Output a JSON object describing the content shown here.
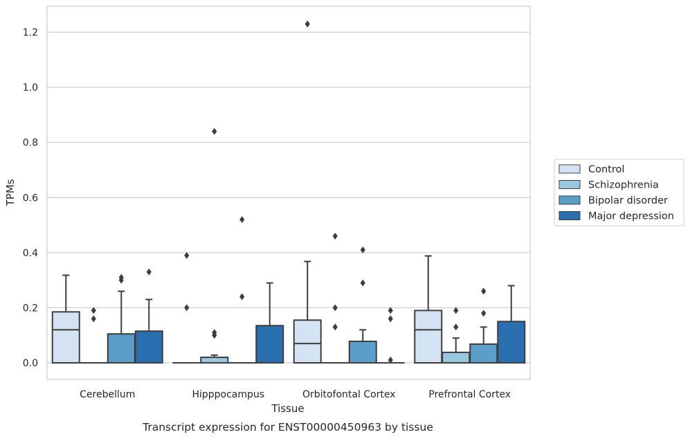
{
  "chart_data": {
    "type": "box",
    "xlabel": "Tissue",
    "ylabel": "TPMs",
    "caption": "Transcript expression for ENST00000450963 by tissue",
    "categories": [
      "Cerebellum",
      "Hipppocampus",
      "Orbitofontal Cortex",
      "Prefrontal Cortex"
    ],
    "ylim": [
      -0.06,
      1.29
    ],
    "yticks": [
      0.0,
      0.2,
      0.4,
      0.6,
      0.8,
      1.0,
      1.2
    ],
    "ytick_labels": [
      "0.0",
      "0.2",
      "0.4",
      "0.6",
      "0.8",
      "1.0",
      "1.2"
    ],
    "grid": true,
    "legend_position": "right",
    "series": [
      {
        "name": "Control",
        "color": "#d3e3f3",
        "boxes": [
          {
            "q1": 0,
            "median": 0.12,
            "q3": 0.185,
            "whisker_low": 0,
            "whisker_high": 0.318,
            "outliers": []
          },
          {
            "q1": 0,
            "median": 0,
            "q3": 0,
            "whisker_low": 0,
            "whisker_high": 0,
            "outliers": [
              0.39,
              0.2
            ]
          },
          {
            "q1": 0,
            "median": 0.07,
            "q3": 0.155,
            "whisker_low": 0,
            "whisker_high": 0.368,
            "outliers": [
              1.23
            ]
          },
          {
            "q1": 0,
            "median": 0.12,
            "q3": 0.19,
            "whisker_low": 0,
            "whisker_high": 0.388,
            "outliers": []
          }
        ]
      },
      {
        "name": "Schizophrenia",
        "color": "#9ac8e0",
        "boxes": [
          {
            "q1": 0,
            "median": 0,
            "q3": 0,
            "whisker_low": 0,
            "whisker_high": 0,
            "outliers": [
              0.19,
              0.16
            ]
          },
          {
            "q1": 0,
            "median": 0,
            "q3": 0.02,
            "whisker_low": 0,
            "whisker_high": 0.028,
            "outliers": [
              0.84,
              0.11,
              0.1
            ]
          },
          {
            "q1": 0,
            "median": 0,
            "q3": 0,
            "whisker_low": 0,
            "whisker_high": 0,
            "outliers": [
              0.46,
              0.2,
              0.13
            ]
          },
          {
            "q1": 0,
            "median": 0,
            "q3": 0.038,
            "whisker_low": 0,
            "whisker_high": 0.09,
            "outliers": [
              0.19,
              0.13
            ]
          }
        ]
      },
      {
        "name": "Bipolar disorder",
        "color": "#5a9ec9",
        "boxes": [
          {
            "q1": 0,
            "median": 0,
            "q3": 0.105,
            "whisker_low": 0,
            "whisker_high": 0.26,
            "outliers": [
              0.31,
              0.3
            ]
          },
          {
            "q1": 0,
            "median": 0,
            "q3": 0,
            "whisker_low": 0,
            "whisker_high": 0,
            "outliers": [
              0.52,
              0.24
            ]
          },
          {
            "q1": 0,
            "median": 0,
            "q3": 0.078,
            "whisker_low": 0,
            "whisker_high": 0.12,
            "outliers": [
              0.41,
              0.29
            ]
          },
          {
            "q1": 0,
            "median": 0,
            "q3": 0.068,
            "whisker_low": 0,
            "whisker_high": 0.13,
            "outliers": [
              0.26,
              0.18
            ]
          }
        ]
      },
      {
        "name": "Major depression",
        "color": "#2a70b1",
        "boxes": [
          {
            "q1": 0,
            "median": 0,
            "q3": 0.115,
            "whisker_low": 0,
            "whisker_high": 0.23,
            "outliers": [
              0.33
            ]
          },
          {
            "q1": 0,
            "median": 0,
            "q3": 0.135,
            "whisker_low": 0,
            "whisker_high": 0.29,
            "outliers": []
          },
          {
            "q1": 0,
            "median": 0,
            "q3": 0,
            "whisker_low": 0,
            "whisker_high": 0,
            "outliers": [
              0.19,
              0.16,
              0.01
            ]
          },
          {
            "q1": 0,
            "median": 0,
            "q3": 0.15,
            "whisker_low": 0,
            "whisker_high": 0.28,
            "outliers": []
          }
        ]
      }
    ]
  }
}
